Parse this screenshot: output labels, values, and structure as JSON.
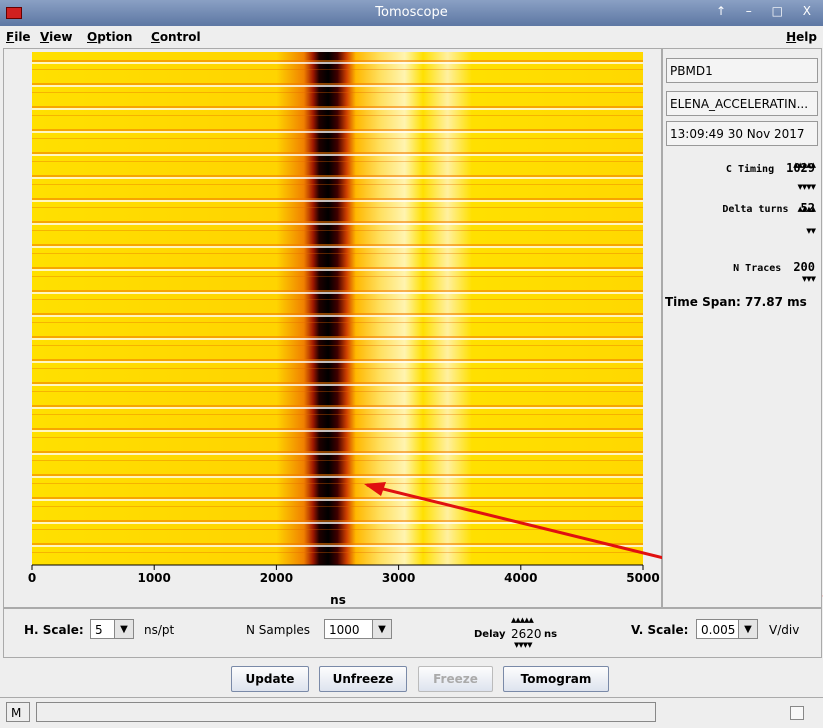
{
  "window": {
    "title": "Tomoscope"
  },
  "menu": {
    "left": [
      "File",
      "View",
      "Option",
      "Control"
    ],
    "right": "Help"
  },
  "plot": {
    "xlim": [
      0,
      5000
    ],
    "xticks": [
      0,
      1000,
      2000,
      3000,
      4000,
      5000
    ],
    "xlabel": "ns"
  },
  "info": {
    "device": "PBMD1",
    "cycle": "ELENA_ACCELERATIN...",
    "timestamp": "13:09:49 30 Nov 2017",
    "time_span": "Time Span: 77.87 ms"
  },
  "settings": [
    {
      "label": "C Timing",
      "value": 1029
    },
    {
      "label": "Delta turns",
      "value": 52
    },
    {
      "label": "N Traces",
      "value": 200
    }
  ],
  "controls": {
    "h_scale": {
      "label": "H. Scale:",
      "value": 5,
      "unit": "ns/pt"
    },
    "n_samples": {
      "label": "N Samples",
      "value": 1000
    },
    "delay": {
      "label": "Delay",
      "value": 2620,
      "unit": "ns"
    },
    "v_scale": {
      "label": "V. Scale:",
      "value": 0.005,
      "unit": "V/div"
    }
  },
  "buttons": [
    "Update",
    "Unfreeze",
    "Freeze",
    "Tomogram"
  ],
  "status": {
    "mode": "M"
  }
}
